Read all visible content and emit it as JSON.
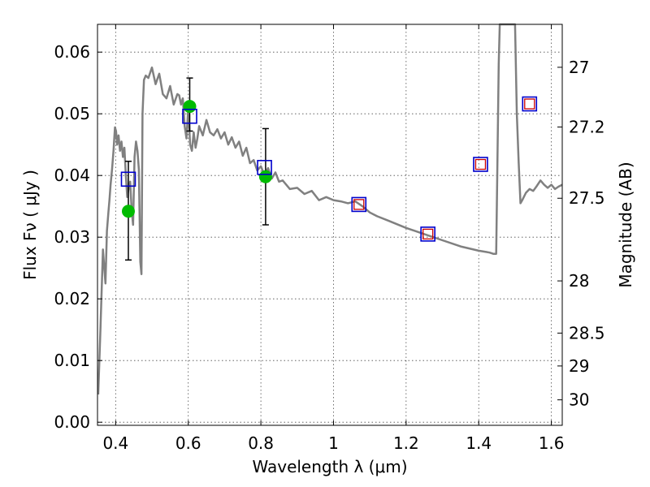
{
  "chart_data": {
    "type": "scatter",
    "xlabel": "Wavelength  λ (μm)",
    "ylabel": "Flux  Fν  ( μJy )",
    "y2label": "Magnitude (AB)",
    "xlim": [
      0.35,
      1.63
    ],
    "ylim": [
      -0.0005,
      0.0645
    ],
    "grid": true,
    "x_ticks": [
      0.4,
      0.6,
      0.8,
      1.0,
      1.2,
      1.4,
      1.6
    ],
    "x_tick_labels": [
      "0.4",
      "0.6",
      "0.8",
      "1",
      "1.2",
      "1.4",
      "1.6"
    ],
    "y_ticks": [
      0.0,
      0.01,
      0.02,
      0.03,
      0.04,
      0.05,
      0.06
    ],
    "y_tick_labels": [
      "0.00",
      "0.01",
      "0.02",
      "0.03",
      "0.04",
      "0.05",
      "0.06"
    ],
    "y2_ticks": [
      {
        "flux": 0.05754,
        "label": "27"
      },
      {
        "flux": 0.04786,
        "label": "27.2"
      },
      {
        "flux": 0.03631,
        "label": "27.5"
      },
      {
        "flux": 0.02291,
        "label": "28"
      },
      {
        "flux": 0.01445,
        "label": "28.5"
      },
      {
        "flux": 0.00912,
        "label": "29"
      },
      {
        "flux": 0.00363,
        "label": "30"
      }
    ],
    "series": [
      {
        "kind": "line",
        "color": "#808080",
        "x": [
          0.352,
          0.358,
          0.365,
          0.372,
          0.376,
          0.38,
          0.383,
          0.386,
          0.39,
          0.394,
          0.398,
          0.401,
          0.404,
          0.408,
          0.412,
          0.416,
          0.42,
          0.424,
          0.428,
          0.432,
          0.436,
          0.44,
          0.444,
          0.448,
          0.452,
          0.456,
          0.46,
          0.464,
          0.468,
          0.471,
          0.474,
          0.478,
          0.483,
          0.49,
          0.5,
          0.51,
          0.52,
          0.53,
          0.54,
          0.55,
          0.56,
          0.57,
          0.575,
          0.58,
          0.585,
          0.59,
          0.595,
          0.6,
          0.605,
          0.61,
          0.615,
          0.62,
          0.625,
          0.63,
          0.64,
          0.65,
          0.66,
          0.67,
          0.68,
          0.69,
          0.7,
          0.71,
          0.72,
          0.73,
          0.74,
          0.75,
          0.76,
          0.77,
          0.78,
          0.79,
          0.8,
          0.81,
          0.82,
          0.83,
          0.84,
          0.85,
          0.86,
          0.88,
          0.9,
          0.92,
          0.94,
          0.96,
          0.98,
          1.0,
          1.02,
          1.04,
          1.06,
          1.08,
          1.1,
          1.12,
          1.15,
          1.2,
          1.25,
          1.3,
          1.35,
          1.4,
          1.42,
          1.43,
          1.44,
          1.448,
          1.451,
          1.455,
          1.458,
          1.46,
          1.47,
          1.48,
          1.49,
          1.5,
          1.505,
          1.51,
          1.515,
          1.52,
          1.53,
          1.54,
          1.55,
          1.56,
          1.57,
          1.58,
          1.59,
          1.6,
          1.61,
          1.62,
          1.63
        ],
        "y": [
          0.0045,
          0.015,
          0.028,
          0.0225,
          0.031,
          0.034,
          0.036,
          0.0385,
          0.041,
          0.044,
          0.0478,
          0.0472,
          0.045,
          0.0465,
          0.044,
          0.0455,
          0.043,
          0.0445,
          0.04,
          0.0365,
          0.038,
          0.039,
          0.0345,
          0.032,
          0.043,
          0.0455,
          0.044,
          0.041,
          0.026,
          0.024,
          0.05,
          0.0555,
          0.0562,
          0.0558,
          0.0575,
          0.0548,
          0.0565,
          0.0532,
          0.0525,
          0.0545,
          0.0515,
          0.0532,
          0.053,
          0.0515,
          0.0525,
          0.048,
          0.046,
          0.051,
          0.045,
          0.044,
          0.047,
          0.0445,
          0.046,
          0.048,
          0.0465,
          0.049,
          0.047,
          0.0465,
          0.0475,
          0.046,
          0.047,
          0.045,
          0.0462,
          0.0445,
          0.0455,
          0.0432,
          0.0445,
          0.042,
          0.0425,
          0.0408,
          0.0415,
          0.04,
          0.0412,
          0.0395,
          0.0405,
          0.039,
          0.0392,
          0.0378,
          0.038,
          0.037,
          0.0375,
          0.036,
          0.0365,
          0.036,
          0.0358,
          0.0355,
          0.0358,
          0.035,
          0.034,
          0.0334,
          0.0327,
          0.0315,
          0.0305,
          0.0295,
          0.0285,
          0.0278,
          0.0276,
          0.0275,
          0.0273,
          0.0273,
          0.04,
          0.058,
          0.0645,
          0.0645,
          0.0645,
          0.0645,
          0.0645,
          0.0645,
          0.05,
          0.042,
          0.0355,
          0.036,
          0.0372,
          0.0378,
          0.0375,
          0.0383,
          0.0392,
          0.0385,
          0.038,
          0.0385,
          0.0378,
          0.0382,
          0.0385
        ]
      },
      {
        "kind": "error_points",
        "color": "#00bb00",
        "x": [
          0.435,
          0.604,
          0.813
        ],
        "y": [
          0.0342,
          0.0512,
          0.0398
        ],
        "yerr_low": [
          0.0263,
          0.0472,
          0.032
        ],
        "yerr_high": [
          0.0423,
          0.0558,
          0.0476
        ]
      },
      {
        "kind": "squares",
        "color": "#0000cc",
        "x": [
          0.435,
          0.604,
          0.81,
          1.07,
          1.26,
          1.405,
          1.54
        ],
        "y": [
          0.0394,
          0.0496,
          0.0413,
          0.0353,
          0.0305,
          0.0418,
          0.0516
        ]
      },
      {
        "kind": "squares",
        "color": "#cc0000",
        "x": [
          1.07,
          1.26,
          1.405,
          1.54
        ],
        "y": [
          0.0353,
          0.0305,
          0.0418,
          0.0516
        ]
      }
    ]
  }
}
